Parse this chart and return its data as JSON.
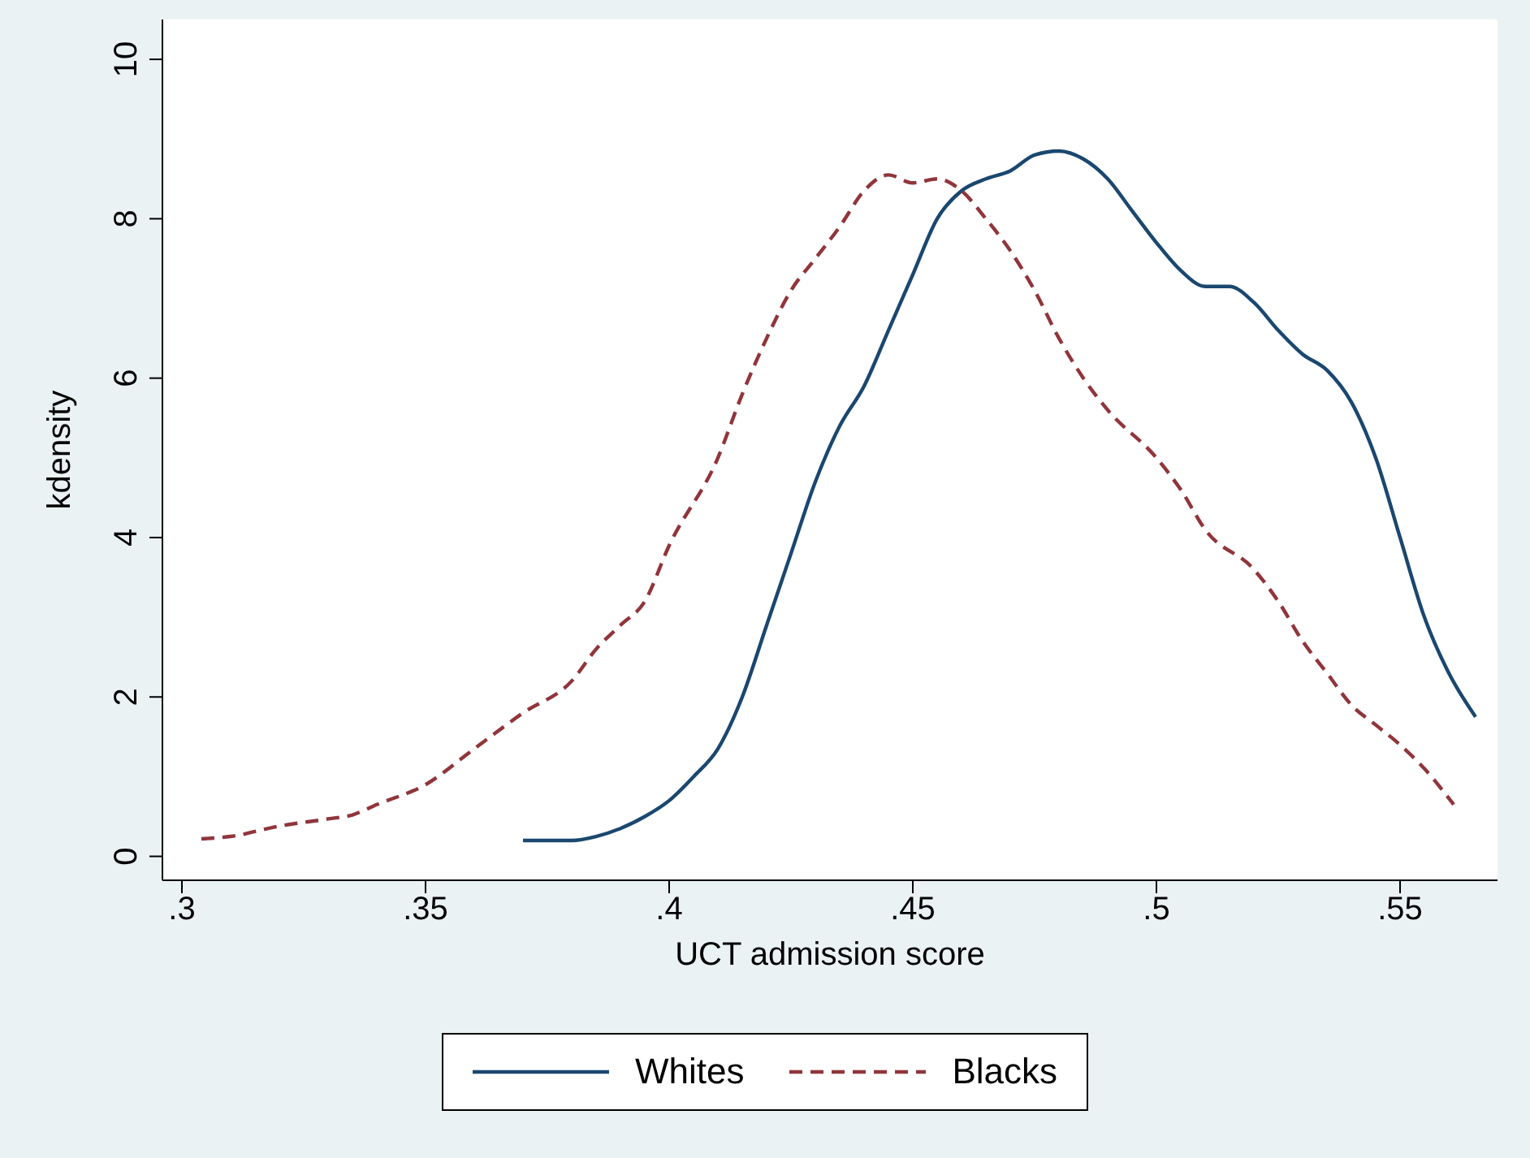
{
  "chart_data": {
    "type": "line",
    "xlabel": "UCT admission score",
    "ylabel": "kdensity",
    "xlim": [
      0.296,
      0.57
    ],
    "ylim": [
      -0.3,
      10.5
    ],
    "xticks": [
      {
        "value": 0.3,
        "label": ".3"
      },
      {
        "value": 0.35,
        "label": ".35"
      },
      {
        "value": 0.4,
        "label": ".4"
      },
      {
        "value": 0.45,
        "label": ".45"
      },
      {
        "value": 0.5,
        "label": ".5"
      },
      {
        "value": 0.55,
        "label": ".55"
      }
    ],
    "yticks": [
      0,
      2,
      4,
      6,
      8,
      10
    ],
    "grid": false,
    "legend": "bottom",
    "marker": "none",
    "series": [
      {
        "name": "Whites",
        "color": "#1a476f",
        "line_style": "solid",
        "x": [
          0.37,
          0.38,
          0.385,
          0.39,
          0.395,
          0.4,
          0.405,
          0.41,
          0.415,
          0.42,
          0.425,
          0.43,
          0.435,
          0.44,
          0.445,
          0.45,
          0.455,
          0.46,
          0.465,
          0.47,
          0.475,
          0.48,
          0.485,
          0.49,
          0.495,
          0.5,
          0.505,
          0.51,
          0.515,
          0.52,
          0.525,
          0.53,
          0.535,
          0.54,
          0.545,
          0.55,
          0.555,
          0.56,
          0.5655
        ],
        "values": [
          0.2,
          0.2,
          0.25,
          0.35,
          0.5,
          0.7,
          1.0,
          1.35,
          2.0,
          2.9,
          3.8,
          4.7,
          5.4,
          5.9,
          6.6,
          7.3,
          8.0,
          8.35,
          8.5,
          8.6,
          8.8,
          8.85,
          8.75,
          8.5,
          8.1,
          7.7,
          7.35,
          7.15,
          7.15,
          6.95,
          6.6,
          6.3,
          6.1,
          5.7,
          5.0,
          4.0,
          3.0,
          2.3,
          1.75
        ]
      },
      {
        "name": "Blacks",
        "color": "#90353b",
        "line_style": "dashed",
        "x": [
          0.304,
          0.31,
          0.32,
          0.33,
          0.335,
          0.34,
          0.35,
          0.36,
          0.37,
          0.38,
          0.385,
          0.39,
          0.395,
          0.4,
          0.41,
          0.415,
          0.42,
          0.425,
          0.43,
          0.435,
          0.44,
          0.445,
          0.45,
          0.455,
          0.46,
          0.465,
          0.47,
          0.475,
          0.48,
          0.485,
          0.49,
          0.5,
          0.505,
          0.51,
          0.52,
          0.525,
          0.53,
          0.535,
          0.54,
          0.545,
          0.55,
          0.555,
          0.561
        ],
        "values": [
          0.22,
          0.25,
          0.38,
          0.47,
          0.52,
          0.65,
          0.9,
          1.35,
          1.8,
          2.2,
          2.6,
          2.9,
          3.2,
          3.9,
          5.0,
          5.8,
          6.5,
          7.1,
          7.5,
          7.9,
          8.35,
          8.55,
          8.45,
          8.5,
          8.35,
          8.0,
          7.6,
          7.1,
          6.5,
          6.0,
          5.6,
          5.0,
          4.6,
          4.1,
          3.6,
          3.2,
          2.7,
          2.3,
          1.9,
          1.65,
          1.4,
          1.1,
          0.65
        ]
      }
    ]
  }
}
